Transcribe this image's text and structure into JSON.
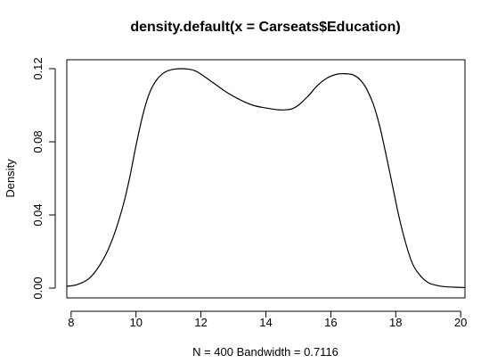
{
  "chart_data": {
    "type": "line",
    "title": "density.default(x = Carseats$Education)",
    "xlabel": "N = 400   Bandwidth = 0.7116",
    "ylabel": "Density",
    "xlim": [
      7.868,
      20.132
    ],
    "ylim": [
      0.0,
      0.12
    ],
    "x_ticks": [
      8,
      10,
      12,
      14,
      16,
      18,
      20
    ],
    "y_ticks": [
      0.0,
      0.04,
      0.08,
      0.12
    ],
    "x_tick_labels": [
      "8",
      "10",
      "12",
      "14",
      "16",
      "18",
      "20"
    ],
    "y_tick_labels": [
      "0.00",
      "0.04",
      "0.08",
      "0.12"
    ],
    "grid": false,
    "legend": "none",
    "series": [
      {
        "color": "#000000",
        "x": [
          7.868,
          8.2,
          8.6,
          9.0,
          9.3,
          9.6,
          9.8,
          10.0,
          10.2,
          10.4,
          10.6,
          10.8,
          11.0,
          11.2,
          11.4,
          11.6,
          11.8,
          12.0,
          12.4,
          12.8,
          13.2,
          13.6,
          14.0,
          14.4,
          14.6,
          14.8,
          15.0,
          15.3,
          15.6,
          15.9,
          16.2,
          16.5,
          16.7,
          16.9,
          17.1,
          17.3,
          17.5,
          17.7,
          17.9,
          18.1,
          18.3,
          18.5,
          18.7,
          19.0,
          19.4,
          19.8,
          20.132
        ],
        "y": [
          0.001,
          0.002,
          0.006,
          0.016,
          0.028,
          0.045,
          0.06,
          0.078,
          0.094,
          0.106,
          0.113,
          0.117,
          0.119,
          0.1198,
          0.12,
          0.1198,
          0.119,
          0.117,
          0.112,
          0.107,
          0.103,
          0.1,
          0.0985,
          0.0975,
          0.0975,
          0.098,
          0.1,
          0.105,
          0.111,
          0.115,
          0.117,
          0.1172,
          0.1165,
          0.114,
          0.109,
          0.101,
          0.089,
          0.073,
          0.056,
          0.039,
          0.025,
          0.014,
          0.008,
          0.003,
          0.001,
          0.0005,
          0.0003
        ]
      }
    ]
  }
}
